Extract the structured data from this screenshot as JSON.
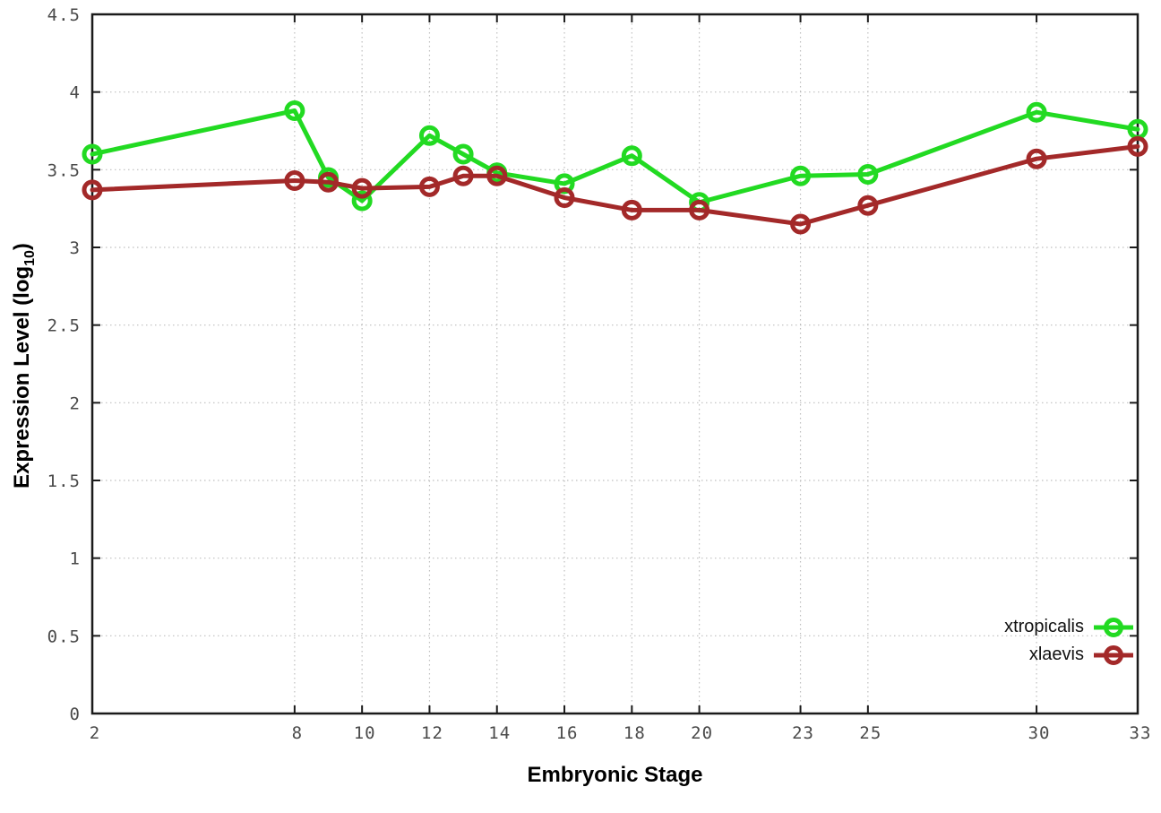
{
  "figure": {
    "background": "#ffffff",
    "border_color": "#1b1b1b",
    "grid_color": "#bfbfbf",
    "tick_label_color": "#4a4a4a",
    "axis_title_color": "#000000"
  },
  "chart_data": {
    "type": "line",
    "title": "",
    "xlabel": "Embryonic Stage",
    "ylabel": "Expression Level (log10)",
    "ylabel_parts": {
      "prefix": "Expression Level (log",
      "sub": "10",
      "suffix": ")"
    },
    "xlim": [
      2,
      33
    ],
    "ylim": [
      0,
      4.5
    ],
    "grid": true,
    "legend_position": "bottom-right",
    "xtick_values": [
      2,
      8,
      10,
      12,
      14,
      16,
      18,
      20,
      23,
      25,
      30,
      33
    ],
    "xtick_labels": [
      "2",
      "8",
      "10",
      "12",
      "14",
      "16",
      "18",
      "20",
      "23",
      "25",
      "30",
      "33"
    ],
    "ytick_values": [
      0,
      0.5,
      1,
      1.5,
      2,
      2.5,
      3,
      3.5,
      4,
      4.5
    ],
    "ytick_labels": [
      "0",
      "0.5",
      "1",
      "1.5",
      "2",
      "2.5",
      "3",
      "3.5",
      "4",
      "4.5"
    ],
    "x": [
      2,
      8,
      9,
      10,
      12,
      13,
      14,
      16,
      18,
      20,
      23,
      25,
      30,
      33
    ],
    "series": [
      {
        "name": "xtropicalis",
        "color": "#22DA22",
        "marker": "open-circle",
        "values": [
          3.6,
          3.88,
          3.45,
          3.3,
          3.72,
          3.6,
          3.48,
          3.41,
          3.59,
          3.29,
          3.46,
          3.47,
          3.87,
          3.76
        ]
      },
      {
        "name": "xlaevis",
        "color": "#A32929",
        "marker": "open-circle",
        "values": [
          3.37,
          3.43,
          3.42,
          3.38,
          3.39,
          3.46,
          3.46,
          3.32,
          3.24,
          3.24,
          3.15,
          3.27,
          3.57,
          3.65
        ]
      }
    ]
  }
}
